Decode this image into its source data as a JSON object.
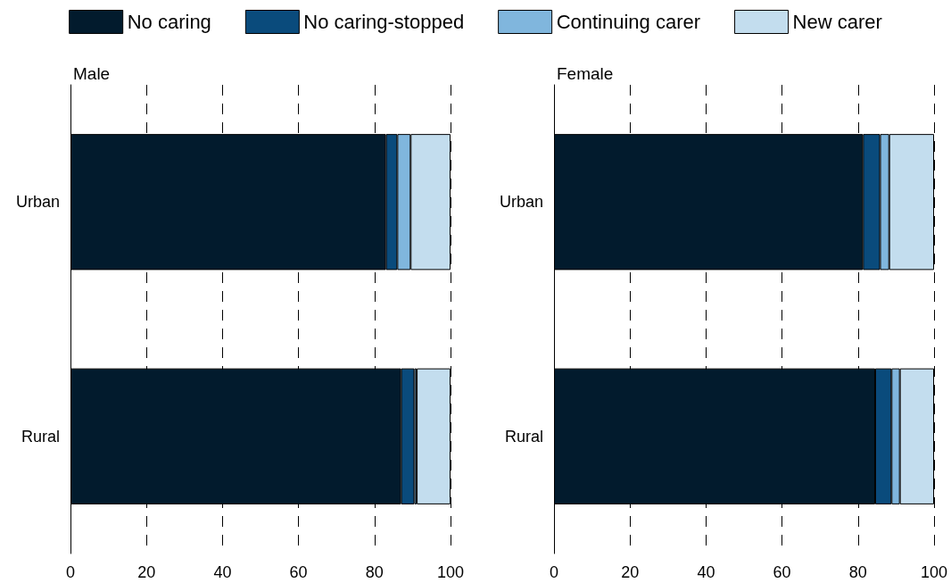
{
  "chart_data": [
    {
      "type": "bar",
      "orientation": "horizontal",
      "stacked": true,
      "title": "Male",
      "categories": [
        "Urban",
        "Rural"
      ],
      "series": [
        {
          "name": "No caring",
          "color": "#021b2d",
          "values": [
            83,
            87
          ]
        },
        {
          "name": "No caring-stopped",
          "color": "#0a4b7c",
          "values": [
            3,
            3.5
          ]
        },
        {
          "name": "Continuing carer",
          "color": "#80b6dd",
          "values": [
            3.5,
            0.6
          ]
        },
        {
          "name": "New carer",
          "color": "#c3ddee",
          "values": [
            10.5,
            8.9
          ]
        }
      ],
      "xlim": [
        0,
        100
      ],
      "xticks": [
        0,
        20,
        40,
        60,
        80,
        100
      ],
      "grid": "x",
      "legend": "top"
    },
    {
      "type": "bar",
      "orientation": "horizontal",
      "stacked": true,
      "title": "Female",
      "categories": [
        "Urban",
        "Rural"
      ],
      "series": [
        {
          "color": "#021b2d",
          "values": [
            81.3,
            84.5
          ]
        },
        {
          "color": "#0a4b7c",
          "values": [
            4.5,
            4.3
          ]
        },
        {
          "color": "#80b6dd",
          "values": [
            2.4,
            2.2
          ]
        },
        {
          "color": "#c3ddee",
          "values": [
            11.8,
            9
          ]
        }
      ],
      "xlim": [
        0,
        100
      ],
      "xticks": [
        0,
        20,
        40,
        60,
        80,
        100
      ],
      "grid": "x",
      "legend": false
    }
  ]
}
